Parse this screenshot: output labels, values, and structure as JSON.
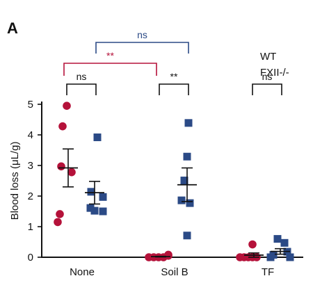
{
  "panel_label": "A",
  "chart_data": {
    "type": "scatter",
    "title": "",
    "xlabel": "",
    "ylabel": "Blood loss (μL/g)",
    "ylim": [
      0,
      5
    ],
    "yticks": [
      0,
      1,
      2,
      3,
      4,
      5
    ],
    "categories": [
      "None",
      "Soil B",
      "TF"
    ],
    "legend_position": "top-right",
    "grid": false,
    "series": [
      {
        "name": "WT",
        "marker": "circle",
        "color": "#b5123a",
        "points": [
          {
            "category": "None",
            "values": [
              4.95,
              4.28,
              2.97,
              2.78,
              1.41,
              1.15
            ]
          },
          {
            "category": "Soil B",
            "values": [
              0.0,
              0.0,
              0.0,
              0.0,
              0.05,
              0.08
            ]
          },
          {
            "category": "TF",
            "values": [
              0.0,
              0.0,
              0.0,
              0.0,
              0.0,
              0.42
            ]
          }
        ],
        "mean": {
          "None": 2.92,
          "Soil B": 0.02,
          "TF": 0.07
        },
        "sem": {
          "None": 0.62,
          "Soil B": 0.01,
          "TF": 0.07
        }
      },
      {
        "name": "FXII-/-",
        "marker": "square",
        "color": "#2b4a86",
        "points": [
          {
            "category": "None",
            "values": [
              3.92,
              2.14,
              1.97,
              1.61,
              1.52,
              1.5
            ]
          },
          {
            "category": "Soil B",
            "values": [
              4.39,
              3.29,
              2.51,
              1.86,
              1.77,
              0.71
            ]
          },
          {
            "category": "TF",
            "values": [
              0.6,
              0.47,
              0.18,
              0.08,
              0.0,
              0.0
            ]
          }
        ],
        "mean": {
          "None": 2.11,
          "Soil B": 2.37,
          "TF": 0.19
        },
        "sem": {
          "None": 0.37,
          "Soil B": 0.55,
          "TF": 0.09
        }
      }
    ],
    "annotations": [
      {
        "text": "ns",
        "type": "within-group",
        "group": "None",
        "color": "#111111",
        "level": 0
      },
      {
        "text": "**",
        "type": "within-group",
        "group": "Soil B",
        "color": "#111111",
        "level": 0
      },
      {
        "text": "ns",
        "type": "within-group",
        "group": "TF",
        "color": "#111111",
        "level": 0
      },
      {
        "text": "**",
        "type": "between",
        "from": "None-WT",
        "to": "Soil B-WT",
        "color": "#b5123a",
        "level": 1
      },
      {
        "text": "ns",
        "type": "between",
        "from": "None-FXII-/-",
        "to": "Soil B-FXII-/-",
        "color": "#2b4a86",
        "level": 2
      }
    ]
  }
}
